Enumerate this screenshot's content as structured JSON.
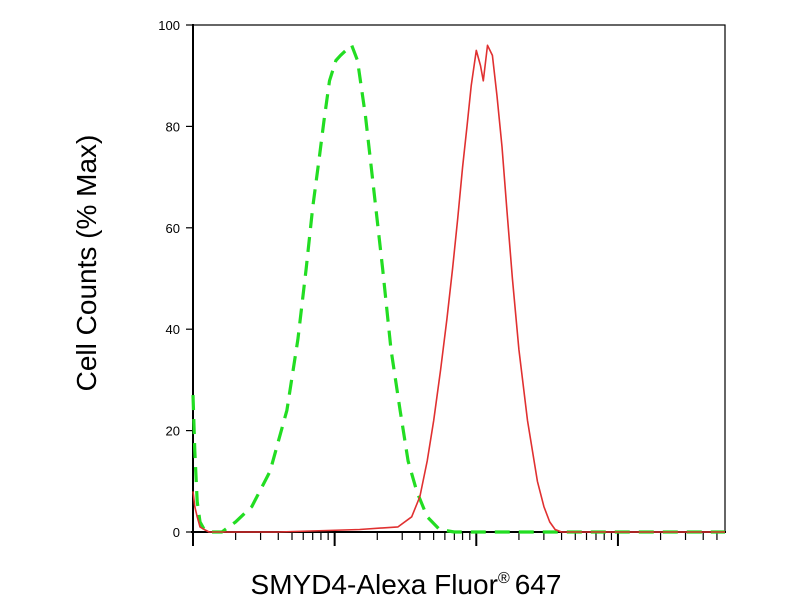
{
  "chart_data": {
    "type": "line",
    "title": "",
    "xlabel": "SMYD4-Alexa Fluor",
    "xlabel_superscript": "®",
    "xlabel_suffix": "647",
    "ylabel": "Cell Counts (% Max)",
    "x_scale": "log",
    "x_decades": [
      1,
      10,
      100,
      1000
    ],
    "xlim": [
      1,
      5700
    ],
    "ylim": [
      0,
      100
    ],
    "yticks": [
      0,
      20,
      40,
      60,
      80,
      100
    ],
    "grid": false,
    "series": [
      {
        "style": "dashed",
        "color": "#22dd22",
        "x": [
          1.0,
          1.03,
          1.07,
          1.12,
          1.2,
          1.35,
          1.6,
          2.0,
          2.6,
          3.5,
          4.6,
          5.5,
          6.3,
          7.0,
          7.8,
          8.4,
          9.2,
          10.2,
          11.0,
          12.0,
          13.2,
          14.5,
          16.5,
          18.8,
          21.8,
          25.0,
          29.0,
          33.0,
          38.0,
          45.0,
          55.0,
          70.0,
          100.0,
          200.0,
          500.0,
          2000.0,
          5700.0
        ],
        "y": [
          27,
          16,
          6,
          2,
          0.5,
          0,
          0,
          2,
          5,
          12,
          24,
          38,
          52,
          64,
          74,
          81,
          89,
          93,
          94,
          95,
          96,
          93,
          82,
          68,
          52,
          36,
          24,
          14,
          8,
          3,
          0.5,
          0,
          0,
          0,
          0,
          0,
          0
        ]
      },
      {
        "style": "solid",
        "color": "#e03030",
        "x": [
          1.0,
          1.03,
          1.07,
          1.12,
          1.2,
          1.3,
          1.5,
          2.0,
          4.0,
          15.0,
          28.0,
          35.0,
          40.0,
          45.0,
          50.0,
          56.0,
          62.0,
          68.0,
          74.0,
          80.0,
          86.0,
          92.0,
          100.0,
          107.0,
          112.0,
          120.0,
          130.0,
          140.0,
          152.0,
          165.0,
          180.0,
          200.0,
          230.0,
          270.0,
          300.0,
          330.0,
          360.0,
          400.0,
          500.0,
          800.0,
          1500.0,
          3000.0,
          5700.0
        ],
        "y": [
          8,
          5,
          3,
          1,
          0.5,
          0,
          0,
          0,
          0,
          0.5,
          1,
          3,
          7,
          14,
          22,
          32,
          42,
          52,
          62,
          72,
          80,
          88,
          95,
          92,
          89,
          96,
          94,
          86,
          76,
          63,
          50,
          36,
          22,
          10,
          5,
          2,
          0.5,
          0,
          0,
          0,
          0,
          0,
          0
        ]
      }
    ]
  }
}
